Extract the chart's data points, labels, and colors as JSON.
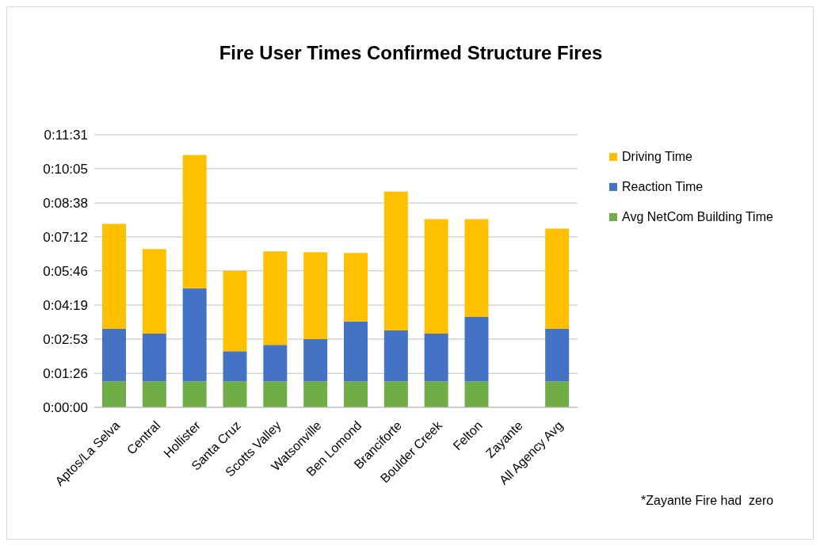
{
  "chart_data": {
    "type": "bar",
    "title": "Fire User Times Confirmed Structure Fires",
    "stacked": true,
    "categories": [
      "Aptos/La Selva",
      "Central",
      "Hollister",
      "Santa Cruz",
      "Scotts Valley",
      "Watsonville",
      "Ben Lomond",
      "Branciforte",
      "Boulder Creek",
      "Felton",
      "Zayante",
      "All Agency Avg"
    ],
    "series": [
      {
        "name": "Avg NetCom Building Time",
        "color": "#70ad47",
        "values": [
          66,
          66,
          66,
          66,
          66,
          66,
          66,
          66,
          66,
          66,
          0,
          66
        ]
      },
      {
        "name": "Reaction Time",
        "color": "#4472c4",
        "values": [
          133,
          121,
          236,
          76,
          92,
          107,
          152,
          129,
          121,
          164,
          0,
          133
        ]
      },
      {
        "name": "Driving Time",
        "color": "#ffc000",
        "values": [
          266,
          214,
          338,
          204,
          237,
          220,
          173,
          352,
          290,
          247,
          0,
          254
        ]
      }
    ],
    "ylim": [
      0,
      691
    ],
    "yticks": [
      {
        "value": 0,
        "label": "0:00:00"
      },
      {
        "value": 86,
        "label": "0:01:26"
      },
      {
        "value": 173,
        "label": "0:02:53"
      },
      {
        "value": 259,
        "label": "0:04:19"
      },
      {
        "value": 346,
        "label": "0:05:46"
      },
      {
        "value": 432,
        "label": "0:07:12"
      },
      {
        "value": 518,
        "label": "0:08:38"
      },
      {
        "value": 605,
        "label": "0:10:05"
      },
      {
        "value": 691,
        "label": "0:11:31"
      }
    ],
    "grid": "y",
    "legend": "right",
    "annotations": [
      "*Zayante Fire had  zero"
    ]
  }
}
